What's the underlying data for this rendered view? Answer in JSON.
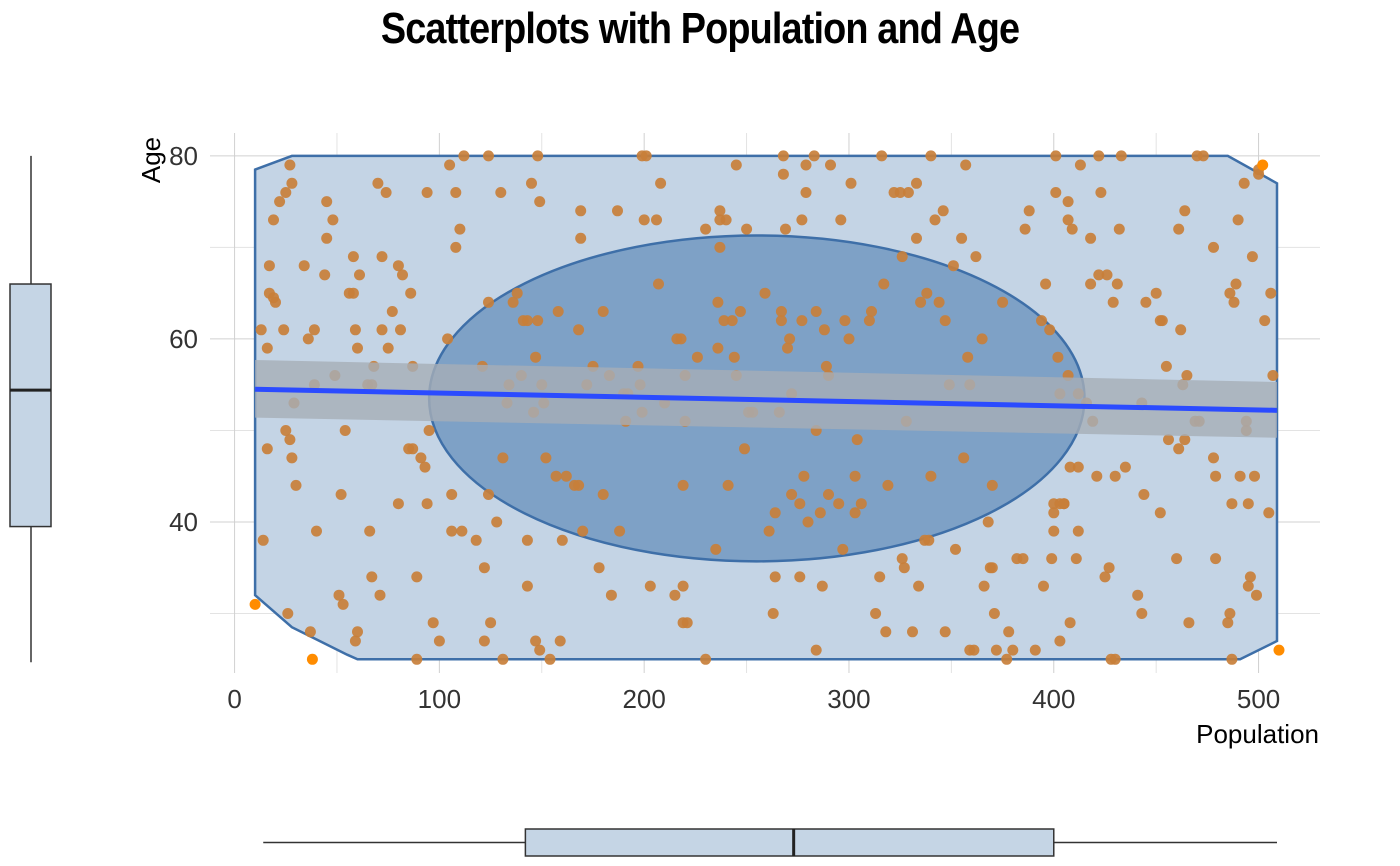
{
  "chart_data": {
    "type": "scatter",
    "title": "Scatterplots with Population and Age",
    "xlabel": "Population",
    "ylabel": "Age",
    "xlim": [
      -12,
      530
    ],
    "ylim": [
      23.5,
      82.5
    ],
    "x_ticks": [
      0,
      100,
      200,
      300,
      400,
      500
    ],
    "y_ticks": [
      40,
      60,
      80
    ],
    "grid": true,
    "colors": {
      "points": "#c87f3a",
      "outlier_points": "#ff8c00",
      "hull_fill": "#c4d4e5",
      "hull_stroke": "#3e6fa8",
      "ellipse_fill": "#7ea1c6",
      "regression_line": "#2b4bff",
      "confidence_band": "#a6aeb6",
      "boxplot_fill": "#c5d5e5",
      "grid": "#d0d0d0"
    },
    "hull": [
      [
        10,
        78.5
      ],
      [
        28,
        80
      ],
      [
        485,
        80
      ],
      [
        509,
        77
      ],
      [
        509,
        27
      ],
      [
        491,
        25
      ],
      [
        60,
        25
      ],
      [
        55,
        25.5
      ],
      [
        28,
        28.5
      ],
      [
        10,
        32
      ],
      [
        10,
        78.5
      ]
    ],
    "ellipse": {
      "center": [
        255,
        53.5
      ],
      "rx": 160,
      "ry": 17.8
    },
    "regression": {
      "x": [
        10,
        509
      ],
      "y": [
        54.5,
        52.2
      ],
      "band_lower": [
        51.4,
        49.2
      ],
      "band_upper": [
        57.7,
        55.3
      ]
    },
    "boxplot_age": {
      "min": 25,
      "q1": 39.5,
      "median": 54.4,
      "q3": 66,
      "max": 80
    },
    "boxplot_population": {
      "min": 14,
      "q1": 142,
      "median": 273,
      "q3": 400,
      "max": 509
    },
    "outliers": [
      [
        10,
        31
      ],
      [
        38,
        25
      ],
      [
        502,
        79
      ],
      [
        510,
        26
      ]
    ],
    "points": [
      [
        13,
        61
      ],
      [
        14,
        38
      ],
      [
        16,
        48
      ],
      [
        16,
        59
      ],
      [
        17,
        68
      ],
      [
        17,
        65
      ],
      [
        19,
        73
      ],
      [
        19,
        64.5
      ],
      [
        20,
        64
      ],
      [
        22,
        75
      ],
      [
        24,
        61
      ],
      [
        25,
        76
      ],
      [
        25,
        50
      ],
      [
        27,
        79
      ],
      [
        26,
        30
      ],
      [
        28,
        77
      ],
      [
        27,
        49
      ],
      [
        28,
        47
      ],
      [
        29,
        53
      ],
      [
        30,
        44
      ],
      [
        34,
        68
      ],
      [
        36,
        60
      ],
      [
        37,
        28
      ],
      [
        39,
        55
      ],
      [
        39,
        61
      ],
      [
        40,
        39
      ],
      [
        44,
        67
      ],
      [
        45,
        71
      ],
      [
        45,
        75
      ],
      [
        48,
        73
      ],
      [
        49,
        56
      ],
      [
        51,
        32
      ],
      [
        52,
        43
      ],
      [
        53,
        31
      ],
      [
        54,
        50
      ],
      [
        56,
        65
      ],
      [
        58,
        65
      ],
      [
        58,
        69
      ],
      [
        59,
        27
      ],
      [
        59,
        61
      ],
      [
        60,
        28
      ],
      [
        60,
        59
      ],
      [
        61,
        67
      ],
      [
        65,
        55
      ],
      [
        66,
        39
      ],
      [
        67,
        34
      ],
      [
        67,
        55
      ],
      [
        68,
        57
      ],
      [
        70,
        77
      ],
      [
        71,
        32
      ],
      [
        72,
        61
      ],
      [
        72,
        69
      ],
      [
        74,
        76
      ],
      [
        75,
        59
      ],
      [
        77,
        63
      ],
      [
        80,
        68
      ],
      [
        80,
        42
      ],
      [
        81,
        61
      ],
      [
        82,
        67
      ],
      [
        85,
        48
      ],
      [
        86,
        65
      ],
      [
        87,
        57
      ],
      [
        87,
        48
      ],
      [
        89,
        34
      ],
      [
        89,
        25
      ],
      [
        91,
        47
      ],
      [
        93,
        46
      ],
      [
        94,
        42
      ],
      [
        94,
        76
      ],
      [
        95,
        50
      ],
      [
        97,
        29
      ],
      [
        100,
        27
      ],
      [
        104,
        60
      ],
      [
        105,
        79
      ],
      [
        106,
        43
      ],
      [
        106,
        39
      ],
      [
        108,
        76
      ],
      [
        108,
        70
      ],
      [
        110,
        72
      ],
      [
        111,
        39
      ],
      [
        112,
        80
      ],
      [
        118,
        38
      ],
      [
        121,
        57
      ],
      [
        122,
        35
      ],
      [
        122,
        27
      ],
      [
        124,
        43
      ],
      [
        124,
        80
      ],
      [
        124,
        64
      ],
      [
        125,
        29
      ],
      [
        128,
        40
      ],
      [
        130,
        76
      ],
      [
        131,
        47
      ],
      [
        131,
        25
      ],
      [
        133,
        53
      ],
      [
        134,
        55
      ],
      [
        136,
        64
      ],
      [
        138,
        65
      ],
      [
        140,
        56
      ],
      [
        141,
        62
      ],
      [
        143,
        62
      ],
      [
        143,
        33
      ],
      [
        143,
        38
      ],
      [
        145,
        77
      ],
      [
        146,
        52
      ],
      [
        147,
        27
      ],
      [
        147,
        58
      ],
      [
        148,
        62
      ],
      [
        148,
        80
      ],
      [
        149,
        26
      ],
      [
        149,
        75
      ],
      [
        150,
        55
      ],
      [
        151,
        53
      ],
      [
        152,
        47
      ],
      [
        154,
        25
      ],
      [
        157,
        45
      ],
      [
        158,
        63
      ],
      [
        159,
        27
      ],
      [
        160,
        38
      ],
      [
        162,
        45
      ],
      [
        166,
        44
      ],
      [
        168,
        44
      ],
      [
        168,
        61
      ],
      [
        169,
        71
      ],
      [
        169,
        74
      ],
      [
        170,
        39
      ],
      [
        172,
        55
      ],
      [
        175,
        57
      ],
      [
        178,
        35
      ],
      [
        180,
        63
      ],
      [
        180,
        43
      ],
      [
        183,
        56
      ],
      [
        184,
        32
      ],
      [
        187,
        74
      ],
      [
        188,
        39
      ],
      [
        190,
        54
      ],
      [
        191,
        51
      ],
      [
        192,
        54
      ],
      [
        197,
        57
      ],
      [
        198,
        55
      ],
      [
        199,
        80
      ],
      [
        199,
        52
      ],
      [
        201,
        80
      ],
      [
        200,
        73
      ],
      [
        203,
        33
      ],
      [
        206,
        73
      ],
      [
        207,
        66
      ],
      [
        208,
        77
      ],
      [
        210,
        53
      ],
      [
        215,
        32
      ],
      [
        216,
        60
      ],
      [
        218,
        60
      ],
      [
        219,
        29
      ],
      [
        219,
        33
      ],
      [
        219,
        44
      ],
      [
        220,
        51
      ],
      [
        221,
        29
      ],
      [
        220,
        56
      ],
      [
        226,
        58
      ],
      [
        230,
        25
      ],
      [
        230,
        72
      ],
      [
        235,
        37
      ],
      [
        236,
        59
      ],
      [
        236,
        64
      ],
      [
        237,
        70
      ],
      [
        237,
        73
      ],
      [
        237,
        74
      ],
      [
        239,
        62
      ],
      [
        240,
        73
      ],
      [
        241,
        44
      ],
      [
        243,
        62
      ],
      [
        244,
        58
      ],
      [
        245,
        56
      ],
      [
        245,
        79
      ],
      [
        247,
        63
      ],
      [
        249,
        48
      ],
      [
        250,
        72
      ],
      [
        251,
        52
      ],
      [
        253,
        52
      ],
      [
        259,
        65
      ],
      [
        261,
        39
      ],
      [
        263,
        30
      ],
      [
        264,
        41
      ],
      [
        264,
        34
      ],
      [
        266,
        52
      ],
      [
        267,
        63
      ],
      [
        267,
        62
      ],
      [
        268,
        78
      ],
      [
        268,
        80
      ],
      [
        269,
        72
      ],
      [
        270,
        59
      ],
      [
        271,
        60
      ],
      [
        272,
        43
      ],
      [
        272,
        54
      ],
      [
        276,
        42
      ],
      [
        276,
        34
      ],
      [
        277,
        62
      ],
      [
        277,
        73
      ],
      [
        278,
        45
      ],
      [
        279,
        76
      ],
      [
        279,
        79
      ],
      [
        280,
        40
      ],
      [
        283,
        80
      ],
      [
        284,
        63
      ],
      [
        284,
        50
      ],
      [
        284,
        26
      ],
      [
        286,
        41
      ],
      [
        287,
        33
      ],
      [
        288,
        61
      ],
      [
        289,
        57
      ],
      [
        290,
        56
      ],
      [
        290,
        43
      ],
      [
        291,
        79
      ],
      [
        295,
        42
      ],
      [
        296,
        73
      ],
      [
        297,
        37
      ],
      [
        298,
        62
      ],
      [
        300,
        60
      ],
      [
        301,
        77
      ],
      [
        303,
        41
      ],
      [
        303,
        45
      ],
      [
        304,
        49
      ],
      [
        306,
        42
      ],
      [
        310,
        62
      ],
      [
        311,
        63
      ],
      [
        313,
        30
      ],
      [
        315,
        34
      ],
      [
        316,
        80
      ],
      [
        317,
        66
      ],
      [
        318,
        28
      ],
      [
        319,
        44
      ],
      [
        322,
        76
      ],
      [
        325,
        76
      ],
      [
        326,
        36
      ],
      [
        326,
        69
      ],
      [
        327,
        35
      ],
      [
        328,
        51
      ],
      [
        329,
        76
      ],
      [
        331,
        28
      ],
      [
        333,
        71
      ],
      [
        333,
        77
      ],
      [
        334,
        33
      ],
      [
        335,
        64
      ],
      [
        337,
        38
      ],
      [
        338,
        65
      ],
      [
        339,
        38
      ],
      [
        340,
        45
      ],
      [
        340,
        80
      ],
      [
        342,
        73
      ],
      [
        344,
        64
      ],
      [
        346,
        74
      ],
      [
        347,
        62
      ],
      [
        347,
        28
      ],
      [
        349,
        55
      ],
      [
        351,
        68
      ],
      [
        352,
        37
      ],
      [
        355,
        71
      ],
      [
        356,
        47
      ],
      [
        357,
        79
      ],
      [
        358,
        58
      ],
      [
        359,
        26
      ],
      [
        359,
        55
      ],
      [
        361,
        26
      ],
      [
        362,
        69
      ],
      [
        365,
        60
      ],
      [
        366,
        33
      ],
      [
        368,
        40
      ],
      [
        369,
        35
      ],
      [
        370,
        35
      ],
      [
        370,
        44
      ],
      [
        371,
        30
      ],
      [
        372,
        26
      ],
      [
        375,
        64
      ],
      [
        377,
        25
      ],
      [
        378,
        28
      ],
      [
        380,
        26
      ],
      [
        382,
        36
      ],
      [
        385,
        36
      ],
      [
        386,
        72
      ],
      [
        388,
        74
      ],
      [
        391,
        26
      ],
      [
        394,
        62
      ],
      [
        395,
        33
      ],
      [
        396,
        66
      ],
      [
        398,
        61
      ],
      [
        399,
        36
      ],
      [
        400,
        41
      ],
      [
        400,
        42
      ],
      [
        400,
        39
      ],
      [
        401,
        76
      ],
      [
        401,
        80
      ],
      [
        402,
        58
      ],
      [
        403,
        54
      ],
      [
        403,
        42
      ],
      [
        403,
        27
      ],
      [
        405,
        42
      ],
      [
        405,
        42
      ],
      [
        407,
        73
      ],
      [
        407,
        56
      ],
      [
        407,
        75
      ],
      [
        408,
        46
      ],
      [
        408,
        29
      ],
      [
        409,
        72
      ],
      [
        411,
        36
      ],
      [
        412,
        39
      ],
      [
        412,
        54
      ],
      [
        412,
        46
      ],
      [
        413,
        79
      ],
      [
        416,
        53
      ],
      [
        418,
        71
      ],
      [
        418,
        66
      ],
      [
        419,
        51
      ],
      [
        421,
        45
      ],
      [
        422,
        67
      ],
      [
        422,
        80
      ],
      [
        423,
        76
      ],
      [
        425,
        34
      ],
      [
        426,
        67
      ],
      [
        427,
        35
      ],
      [
        428,
        25
      ],
      [
        429,
        64
      ],
      [
        430,
        25
      ],
      [
        430,
        45
      ],
      [
        431,
        66
      ],
      [
        432,
        72
      ],
      [
        433,
        80
      ],
      [
        435,
        46
      ],
      [
        441,
        32
      ],
      [
        443,
        30
      ],
      [
        443,
        53
      ],
      [
        444,
        43
      ],
      [
        445,
        64
      ],
      [
        450,
        65
      ],
      [
        452,
        41
      ],
      [
        452,
        62
      ],
      [
        453,
        62
      ],
      [
        455,
        57
      ],
      [
        456,
        49
      ],
      [
        460,
        36
      ],
      [
        461,
        48
      ],
      [
        461,
        72
      ],
      [
        462,
        61
      ],
      [
        463,
        55
      ],
      [
        464,
        74
      ],
      [
        464,
        49
      ],
      [
        465,
        56
      ],
      [
        466,
        29
      ],
      [
        469,
        51
      ],
      [
        470,
        80
      ],
      [
        471,
        51
      ],
      [
        473,
        80
      ],
      [
        478,
        47
      ],
      [
        478,
        70
      ],
      [
        479,
        36
      ],
      [
        479,
        45
      ],
      [
        485,
        29
      ],
      [
        486,
        30
      ],
      [
        486,
        65
      ],
      [
        487,
        42
      ],
      [
        487,
        25
      ],
      [
        488,
        64
      ],
      [
        489,
        66
      ],
      [
        490,
        73
      ],
      [
        491,
        45
      ],
      [
        493,
        77
      ],
      [
        494,
        50
      ],
      [
        494,
        51
      ],
      [
        495,
        33
      ],
      [
        496,
        34
      ],
      [
        495,
        42
      ],
      [
        497,
        69
      ],
      [
        498,
        45
      ],
      [
        499,
        32
      ],
      [
        500,
        78
      ],
      [
        500,
        78.5
      ],
      [
        503,
        62
      ],
      [
        505,
        41
      ],
      [
        506,
        65
      ],
      [
        507,
        56
      ]
    ]
  }
}
